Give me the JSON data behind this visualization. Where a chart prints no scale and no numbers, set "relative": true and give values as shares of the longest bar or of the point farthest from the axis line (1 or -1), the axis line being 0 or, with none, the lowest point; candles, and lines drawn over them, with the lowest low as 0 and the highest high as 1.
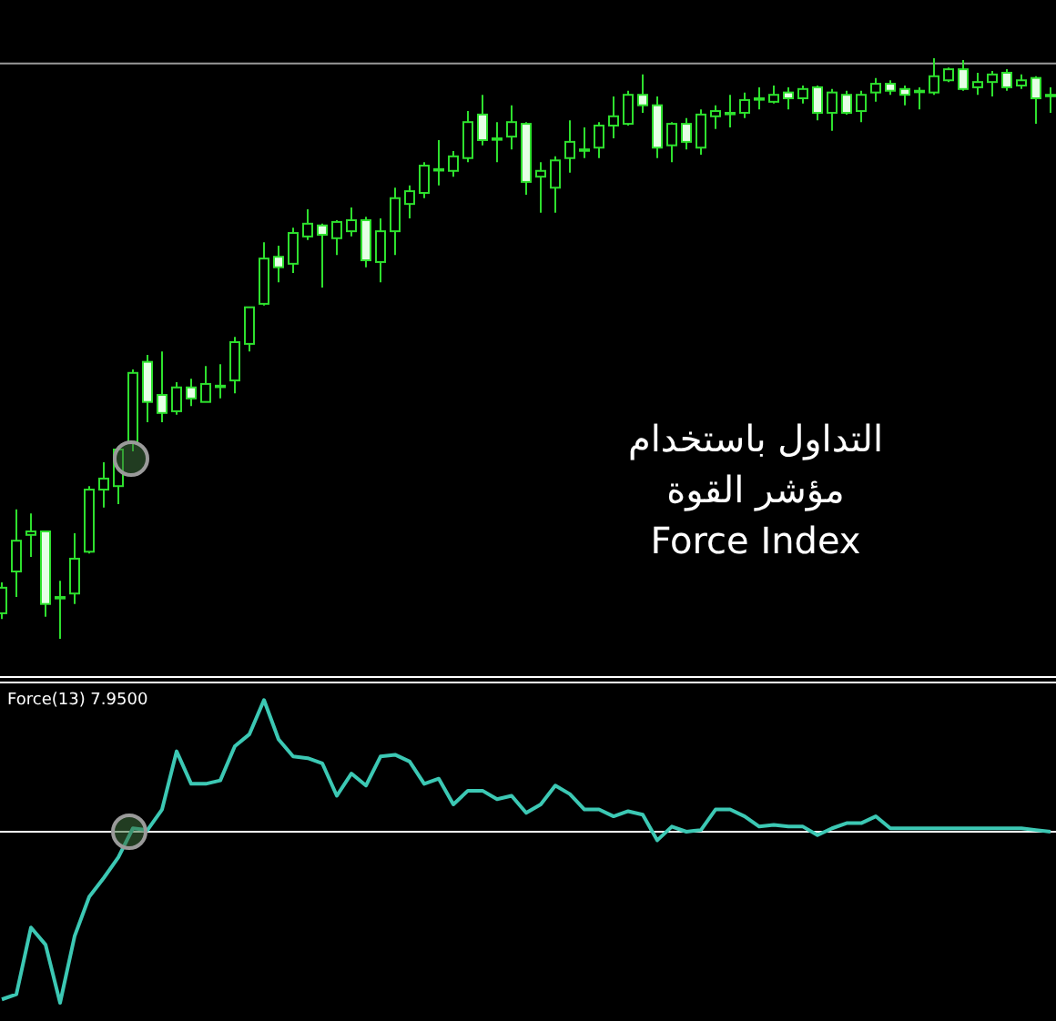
{
  "chart_data": [
    {
      "type": "candlestick",
      "relative": true,
      "color": "#2ee02e",
      "categories": [
        null,
        null,
        null,
        null,
        null,
        null,
        null,
        null,
        null,
        null,
        null,
        null,
        null,
        null,
        null,
        null,
        null,
        null,
        null,
        null,
        null,
        null,
        null,
        null,
        null,
        null,
        null,
        null,
        null,
        null,
        null,
        null,
        null,
        null,
        null,
        null,
        null,
        null,
        null,
        null,
        null,
        null,
        null,
        null,
        null,
        null,
        null,
        null,
        null,
        null,
        null,
        null,
        null,
        null,
        null,
        null,
        null,
        null,
        null,
        null,
        null,
        null,
        null,
        null,
        null,
        null,
        null,
        null,
        null,
        null,
        null,
        null,
        null
      ],
      "ohlc": [
        [
          0.044,
          0.097,
          0.034,
          0.088
        ],
        [
          0.116,
          0.223,
          0.072,
          0.169
        ],
        [
          0.179,
          0.216,
          0.141,
          0.185
        ],
        [
          0.185,
          0.185,
          0.038,
          0.06
        ],
        [
          0.072,
          0.1,
          0,
          0.072
        ],
        [
          0.078,
          0.182,
          0.06,
          0.138
        ],
        [
          0.15,
          0.263,
          0.147,
          0.257
        ],
        [
          0.257,
          0.304,
          0.226,
          0.276
        ],
        [
          0.263,
          0.332,
          0.232,
          0.326
        ],
        [
          0.339,
          0.464,
          0.323,
          0.458
        ],
        [
          0.477,
          0.489,
          0.373,
          0.408
        ],
        [
          0.42,
          0.495,
          0.373,
          0.389
        ],
        [
          0.392,
          0.442,
          0.386,
          0.433
        ],
        [
          0.433,
          0.448,
          0.401,
          0.414
        ],
        [
          0.408,
          0.47,
          0.408,
          0.439
        ],
        [
          0.436,
          0.473,
          0.414,
          0.436
        ],
        [
          0.445,
          0.52,
          0.423,
          0.511
        ],
        [
          0.508,
          0.571,
          0.495,
          0.571
        ],
        [
          0.577,
          0.683,
          0.574,
          0.655
        ],
        [
          0.658,
          0.677,
          0.614,
          0.64
        ],
        [
          0.646,
          0.708,
          0.63,
          0.699
        ],
        [
          0.693,
          0.74,
          0.687,
          0.715
        ],
        [
          0.712,
          0.715,
          0.605,
          0.696
        ],
        [
          0.69,
          0.721,
          0.661,
          0.718
        ],
        [
          0.702,
          0.743,
          0.693,
          0.721
        ],
        [
          0.721,
          0.727,
          0.64,
          0.652
        ],
        [
          0.649,
          0.724,
          0.614,
          0.702
        ],
        [
          0.702,
          0.777,
          0.661,
          0.759
        ],
        [
          0.749,
          0.781,
          0.724,
          0.771
        ],
        [
          0.768,
          0.821,
          0.759,
          0.815
        ],
        [
          0.809,
          0.859,
          0.781,
          0.809
        ],
        [
          0.806,
          0.84,
          0.796,
          0.831
        ],
        [
          0.828,
          0.909,
          0.821,
          0.89
        ],
        [
          0.903,
          0.937,
          0.85,
          0.859
        ],
        [
          0.862,
          0.89,
          0.821,
          0.862
        ],
        [
          0.865,
          0.919,
          0.843,
          0.89
        ],
        [
          0.887,
          0.89,
          0.765,
          0.787
        ],
        [
          0.796,
          0.821,
          0.734,
          0.806
        ],
        [
          0.777,
          0.831,
          0.734,
          0.824
        ],
        [
          0.828,
          0.893,
          0.803,
          0.856
        ],
        [
          0.843,
          0.881,
          0.828,
          0.843
        ],
        [
          0.846,
          0.89,
          0.828,
          0.884
        ],
        [
          0.884,
          0.934,
          0.862,
          0.9
        ],
        [
          0.887,
          0.944,
          0.884,
          0.937
        ],
        [
          0.937,
          0.972,
          0.906,
          0.919
        ],
        [
          0.919,
          0.934,
          0.828,
          0.846
        ],
        [
          0.85,
          0.89,
          0.821,
          0.887
        ],
        [
          0.887,
          0.897,
          0.843,
          0.856
        ],
        [
          0.846,
          0.912,
          0.834,
          0.903
        ],
        [
          0.9,
          0.919,
          0.878,
          0.909
        ],
        [
          0.906,
          0.937,
          0.881,
          0.906
        ],
        [
          0.906,
          0.941,
          0.897,
          0.928
        ],
        [
          0.931,
          0.95,
          0.912,
          0.931
        ],
        [
          0.925,
          0.953,
          0.922,
          0.937
        ],
        [
          0.941,
          0.95,
          0.912,
          0.931
        ],
        [
          0.931,
          0.953,
          0.922,
          0.947
        ],
        [
          0.95,
          0.953,
          0.893,
          0.906
        ],
        [
          0.906,
          0.947,
          0.875,
          0.941
        ],
        [
          0.937,
          0.944,
          0.903,
          0.906
        ],
        [
          0.909,
          0.944,
          0.89,
          0.937
        ],
        [
          0.941,
          0.966,
          0.925,
          0.956
        ],
        [
          0.956,
          0.962,
          0.937,
          0.944
        ],
        [
          0.947,
          0.953,
          0.919,
          0.937
        ],
        [
          0.944,
          0.95,
          0.912,
          0.944
        ],
        [
          0.941,
          1,
          0.937,
          0.969
        ],
        [
          0.962,
          0.984,
          0.959,
          0.981
        ],
        [
          0.981,
          0.997,
          0.944,
          0.947
        ],
        [
          0.95,
          0.975,
          0.937,
          0.959
        ],
        [
          0.959,
          0.978,
          0.934,
          0.972
        ],
        [
          0.975,
          0.981,
          0.944,
          0.95
        ],
        [
          0.953,
          0.972,
          0.947,
          0.962
        ],
        [
          0.966,
          0.969,
          0.887,
          0.931
        ],
        [
          0.937,
          0.95,
          0.906,
          0.937
        ]
      ],
      "ref_lines": [
        {
          "axis": "y",
          "value": 0.991,
          "color": "#9a9a9a"
        }
      ],
      "annotations": [
        "التداول باستخدام",
        "مؤشر القوة",
        "Force Index"
      ]
    },
    {
      "type": "line",
      "relative": true,
      "title": "Force(13) 7.9500",
      "categories": [
        null,
        null,
        null,
        null,
        null,
        null,
        null,
        null,
        null,
        null,
        null,
        null,
        null,
        null,
        null,
        null,
        null,
        null,
        null,
        null,
        null,
        null,
        null,
        null,
        null,
        null,
        null,
        null,
        null,
        null,
        null,
        null,
        null,
        null,
        null,
        null,
        null,
        null,
        null,
        null,
        null,
        null,
        null,
        null,
        null,
        null,
        null,
        null,
        null,
        null,
        null,
        null,
        null,
        null,
        null,
        null,
        null,
        null,
        null,
        null,
        null,
        null,
        null,
        null,
        null,
        null,
        null,
        null,
        null,
        null,
        null,
        null,
        null
      ],
      "series": [
        {
          "color": "#3cc8b4",
          "values": [
            -0.98,
            -0.95,
            -0.56,
            -0.66,
            -1,
            -0.61,
            -0.38,
            -0.27,
            -0.15,
            0.02,
            0.01,
            0.13,
            0.47,
            0.28,
            0.28,
            0.3,
            0.5,
            0.57,
            0.77,
            0.54,
            0.44,
            0.43,
            0.4,
            0.21,
            0.34,
            0.27,
            0.44,
            0.45,
            0.41,
            0.28,
            0.31,
            0.16,
            0.24,
            0.24,
            0.19,
            0.21,
            0.11,
            0.16,
            0.27,
            0.22,
            0.13,
            0.13,
            0.09,
            0.12,
            0.1,
            -0.05,
            0.03,
            0,
            0.01,
            0.13,
            0.13,
            0.09,
            0.03,
            0.04,
            0.03,
            0.03,
            -0.02,
            0.02,
            0.05,
            0.05,
            0.09,
            0.02,
            0.02,
            0.02,
            0.02,
            0.02,
            0.02,
            0.02,
            0.02,
            0.02,
            0.02,
            0.01,
            0
          ]
        }
      ],
      "ref_lines": [
        {
          "axis": "y",
          "value": 0,
          "color": "#ffffff"
        }
      ]
    }
  ]
}
